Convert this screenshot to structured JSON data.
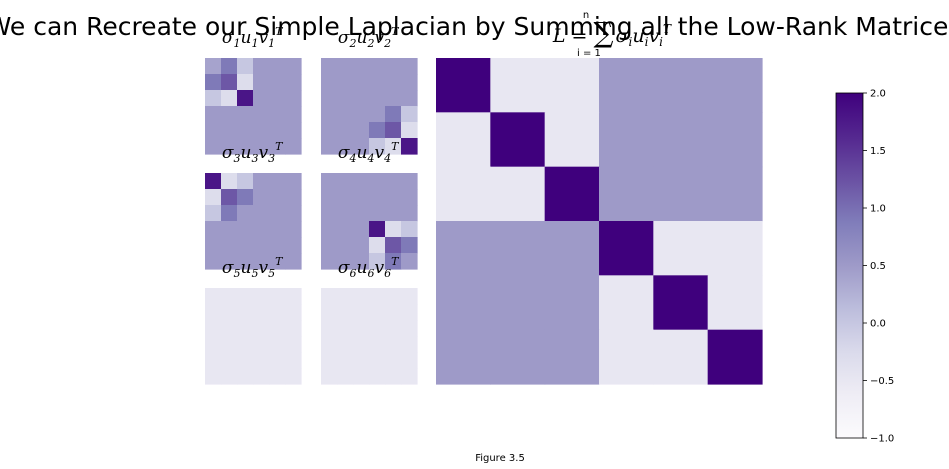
{
  "figure": {
    "title": "We can Recreate our Simple Laplacian by Summing all the Low-Rank Matrices",
    "caption": "Figure 3.5"
  },
  "colormap": {
    "name": "Purples",
    "vmin": -1.0,
    "vmax": 2.0,
    "stops": [
      "#fcfbfd",
      "#efedf5",
      "#dadaeb",
      "#bcbddc",
      "#9e9ac8",
      "#807dba",
      "#6a51a3",
      "#54278f",
      "#3f007d"
    ]
  },
  "chart_data": [
    {
      "type": "heatmap",
      "title": {
        "base": "σ",
        "sub1": "1",
        "mid": "u",
        "sub2": "1",
        "end": "v",
        "sub3": "1",
        "sup": "T"
      },
      "cells": [
        [
          0.4,
          0.9,
          0.0,
          0.5,
          0.5,
          0.5
        ],
        [
          0.9,
          1.2,
          -0.3,
          0.5,
          0.5,
          0.5
        ],
        [
          0.0,
          -0.3,
          1.8,
          0.5,
          0.5,
          0.5
        ],
        [
          0.5,
          0.5,
          0.5,
          0.5,
          0.5,
          0.5
        ],
        [
          0.5,
          0.5,
          0.5,
          0.5,
          0.5,
          0.5
        ],
        [
          0.5,
          0.5,
          0.5,
          0.5,
          0.5,
          0.5
        ]
      ]
    },
    {
      "type": "heatmap",
      "title": {
        "base": "σ",
        "sub1": "2",
        "mid": "u",
        "sub2": "2",
        "end": "v",
        "sub3": "2",
        "sup": "T"
      },
      "cells": [
        [
          0.5,
          0.5,
          0.5,
          0.5,
          0.5,
          0.5
        ],
        [
          0.5,
          0.5,
          0.5,
          0.5,
          0.5,
          0.5
        ],
        [
          0.5,
          0.5,
          0.5,
          0.5,
          0.5,
          0.5
        ],
        [
          0.5,
          0.5,
          0.5,
          0.5,
          0.9,
          0.0
        ],
        [
          0.5,
          0.5,
          0.5,
          0.9,
          1.2,
          -0.3
        ],
        [
          0.5,
          0.5,
          0.5,
          0.0,
          -0.3,
          1.8
        ]
      ]
    },
    {
      "type": "heatmap",
      "title": {
        "base": "σ",
        "sub1": "3",
        "mid": "u",
        "sub2": "3",
        "end": "v",
        "sub3": "3",
        "sup": "T"
      },
      "cells": [
        [
          1.8,
          -0.3,
          0.0,
          0.5,
          0.5,
          0.5
        ],
        [
          -0.3,
          1.2,
          0.9,
          0.5,
          0.5,
          0.5
        ],
        [
          0.0,
          0.9,
          0.5,
          0.5,
          0.5,
          0.5
        ],
        [
          0.5,
          0.5,
          0.5,
          0.5,
          0.5,
          0.5
        ],
        [
          0.5,
          0.5,
          0.5,
          0.5,
          0.5,
          0.5
        ],
        [
          0.5,
          0.5,
          0.5,
          0.5,
          0.5,
          0.5
        ]
      ]
    },
    {
      "type": "heatmap",
      "title": {
        "base": "σ",
        "sub1": "4",
        "mid": "u",
        "sub2": "4",
        "end": "v",
        "sub3": "4",
        "sup": "T"
      },
      "cells": [
        [
          0.5,
          0.5,
          0.5,
          0.5,
          0.5,
          0.5
        ],
        [
          0.5,
          0.5,
          0.5,
          0.5,
          0.5,
          0.5
        ],
        [
          0.5,
          0.5,
          0.5,
          0.5,
          0.5,
          0.5
        ],
        [
          0.5,
          0.5,
          0.5,
          1.8,
          -0.3,
          0.0
        ],
        [
          0.5,
          0.5,
          0.5,
          -0.3,
          1.2,
          0.9
        ],
        [
          0.5,
          0.5,
          0.5,
          0.0,
          0.9,
          0.5
        ]
      ]
    },
    {
      "type": "heatmap",
      "title": {
        "base": "σ",
        "sub1": "5",
        "mid": "u",
        "sub2": "5",
        "end": "v",
        "sub3": "5",
        "sup": "T"
      },
      "cells": [
        [
          -0.5,
          -0.5,
          -0.5,
          -0.5,
          -0.5,
          -0.5
        ],
        [
          -0.5,
          -0.5,
          -0.5,
          -0.5,
          -0.5,
          -0.5
        ],
        [
          -0.5,
          -0.5,
          -0.5,
          -0.5,
          -0.5,
          -0.5
        ],
        [
          -0.5,
          -0.5,
          -0.5,
          -0.5,
          -0.5,
          -0.5
        ],
        [
          -0.5,
          -0.5,
          -0.5,
          -0.5,
          -0.5,
          -0.5
        ],
        [
          -0.5,
          -0.5,
          -0.5,
          -0.5,
          -0.5,
          -0.5
        ]
      ]
    },
    {
      "type": "heatmap",
      "title": {
        "base": "σ",
        "sub1": "6",
        "mid": "u",
        "sub2": "6",
        "end": "v",
        "sub3": "6",
        "sup": "T"
      },
      "cells": [
        [
          -0.5,
          -0.5,
          -0.5,
          -0.5,
          -0.5,
          -0.5
        ],
        [
          -0.5,
          -0.5,
          -0.5,
          -0.5,
          -0.5,
          -0.5
        ],
        [
          -0.5,
          -0.5,
          -0.5,
          -0.5,
          -0.5,
          -0.5
        ],
        [
          -0.5,
          -0.5,
          -0.5,
          -0.5,
          -0.5,
          -0.5
        ],
        [
          -0.5,
          -0.5,
          -0.5,
          -0.5,
          -0.5,
          -0.5
        ],
        [
          -0.5,
          -0.5,
          -0.5,
          -0.5,
          -0.5,
          -0.5
        ]
      ]
    },
    {
      "type": "heatmap",
      "title": {
        "lhs": "L =",
        "sum": "∑",
        "sum_top": "n",
        "sum_bottom": "i = 1",
        "base": "σ",
        "sub1": "i",
        "mid": "u",
        "sub2": "i",
        "end": "v",
        "sub3": "i",
        "sup": "T"
      },
      "cells": [
        [
          2,
          -0.5,
          -0.5,
          0.5,
          0.5,
          0.5
        ],
        [
          -0.5,
          2,
          -0.5,
          0.5,
          0.5,
          0.5
        ],
        [
          -0.5,
          -0.5,
          2,
          0.5,
          0.5,
          0.5
        ],
        [
          0.5,
          0.5,
          0.5,
          2,
          -0.5,
          -0.5
        ],
        [
          0.5,
          0.5,
          0.5,
          -0.5,
          2,
          -0.5
        ],
        [
          0.5,
          0.5,
          0.5,
          -0.5,
          -0.5,
          2
        ]
      ]
    },
    {
      "type": "colorbar",
      "ticks": [
        "2.0",
        "1.5",
        "1.0",
        "0.5",
        "0.0",
        "−0.5",
        "−1.0"
      ],
      "tick_values": [
        2.0,
        1.5,
        1.0,
        0.5,
        0.0,
        -0.5,
        -1.0
      ],
      "range": [
        -1.0,
        2.0
      ]
    }
  ]
}
